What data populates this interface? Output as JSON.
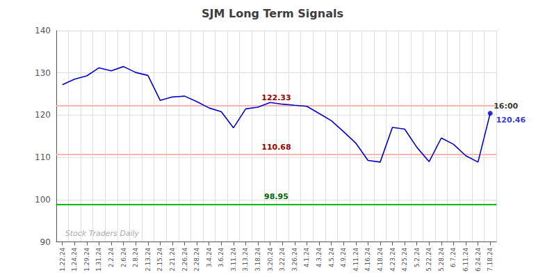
{
  "chart_data": {
    "type": "line",
    "title": "SJM Long Term Signals",
    "categories": [
      "1.22.24",
      "1.24.24",
      "1.29.24",
      "1.31.24",
      "2.2.24",
      "2.6.24",
      "2.8.24",
      "2.13.24",
      "2.15.24",
      "2.21.24",
      "2.26.24",
      "2.28.24",
      "3.4.24",
      "3.6.24",
      "3.11.24",
      "3.13.24",
      "3.18.24",
      "3.20.24",
      "3.22.24",
      "3.26.24",
      "4.1.24",
      "4.3.24",
      "4.5.24",
      "4.9.24",
      "4.11.24",
      "4.16.24",
      "4.18.24",
      "4.23.24",
      "4.25.24",
      "5.2.24",
      "5.22.24",
      "5.28.24",
      "6.7.24",
      "6.11.24",
      "6.24.24",
      "7.18.24"
    ],
    "values": [
      127.2,
      128.5,
      129.3,
      131.2,
      130.5,
      131.5,
      130.1,
      129.4,
      123.5,
      124.3,
      124.5,
      123.2,
      121.7,
      120.8,
      117.0,
      121.5,
      121.9,
      123.0,
      122.6,
      122.33,
      122.1,
      120.4,
      118.7,
      116.1,
      113.4,
      109.3,
      108.9,
      117.1,
      116.7,
      112.4,
      109.0,
      114.6,
      113.1,
      110.4,
      108.9,
      120.46
    ],
    "color": "#0000cc",
    "ylim": [
      90,
      140
    ],
    "yticks": [
      90,
      100,
      110,
      120,
      130,
      140
    ],
    "grid": true,
    "reference_lines": [
      {
        "value": 122.33,
        "label": "122.33",
        "color": "#ffb3b3",
        "label_color": "#990000"
      },
      {
        "value": 110.68,
        "label": "110.68",
        "color": "#ffb3b3",
        "label_color": "#990000"
      },
      {
        "value": 98.95,
        "label": "98.95",
        "color": "#00bb00",
        "label_color": "#006600"
      }
    ],
    "last_point": {
      "time_label": "16:00",
      "time_color": "#000000",
      "value_label": "120.46",
      "color": "#0000cc"
    },
    "watermark": "Stock Traders Daily"
  }
}
